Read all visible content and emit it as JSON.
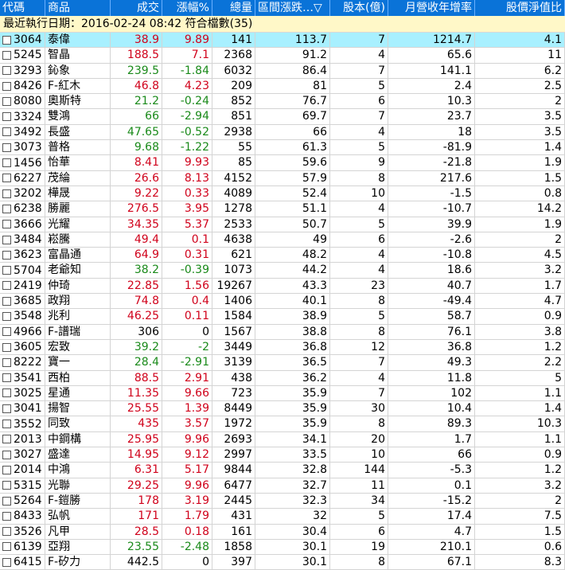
{
  "headers": [
    "代碼",
    "商品",
    "成交",
    "漲幅%",
    "總量",
    "區間漲跌…",
    "股本(億)",
    "月營收年增率",
    "股價淨值比"
  ],
  "sort_icon": "▽",
  "info_line": "最近執行日期：2016-02-24 08:42  符合檔數(35)",
  "rows": [
    {
      "code": "3064",
      "name": "泰偉",
      "price": "38.9",
      "chg": "9.89",
      "vol": "141",
      "range": "113.7",
      "cap": "7",
      "rev": "1214.7",
      "pb": "4.1",
      "dir": "up"
    },
    {
      "code": "5245",
      "name": "智晶",
      "price": "188.5",
      "chg": "7.1",
      "vol": "2368",
      "range": "91.2",
      "cap": "4",
      "rev": "65.6",
      "pb": "11",
      "dir": "up"
    },
    {
      "code": "3293",
      "name": "鈊象",
      "price": "239.5",
      "chg": "-1.84",
      "vol": "6032",
      "range": "86.4",
      "cap": "7",
      "rev": "141.1",
      "pb": "6.2",
      "dir": "down"
    },
    {
      "code": "8426",
      "name": "F-紅木",
      "price": "46.8",
      "chg": "4.23",
      "vol": "209",
      "range": "81",
      "cap": "5",
      "rev": "2.4",
      "pb": "2.5",
      "dir": "up"
    },
    {
      "code": "8080",
      "name": "奧斯特",
      "price": "21.2",
      "chg": "-0.24",
      "vol": "852",
      "range": "76.7",
      "cap": "6",
      "rev": "10.3",
      "pb": "2",
      "dir": "down"
    },
    {
      "code": "3324",
      "name": "雙鴻",
      "price": "66",
      "chg": "-2.94",
      "vol": "851",
      "range": "69.7",
      "cap": "7",
      "rev": "23.7",
      "pb": "3.5",
      "dir": "down"
    },
    {
      "code": "3492",
      "name": "長盛",
      "price": "47.65",
      "chg": "-0.52",
      "vol": "2938",
      "range": "66",
      "cap": "4",
      "rev": "18",
      "pb": "3.5",
      "dir": "down"
    },
    {
      "code": "3073",
      "name": "普格",
      "price": "9.68",
      "chg": "-1.22",
      "vol": "55",
      "range": "61.3",
      "cap": "5",
      "rev": "-81.9",
      "pb": "1.4",
      "dir": "down"
    },
    {
      "code": "1456",
      "name": "怡華",
      "price": "8.41",
      "chg": "9.93",
      "vol": "85",
      "range": "59.6",
      "cap": "9",
      "rev": "-21.8",
      "pb": "1.9",
      "dir": "up"
    },
    {
      "code": "6227",
      "name": "茂綸",
      "price": "26.6",
      "chg": "8.13",
      "vol": "4152",
      "range": "57.9",
      "cap": "8",
      "rev": "217.6",
      "pb": "1.5",
      "dir": "up"
    },
    {
      "code": "3202",
      "name": "樺晟",
      "price": "9.22",
      "chg": "0.33",
      "vol": "4089",
      "range": "52.4",
      "cap": "10",
      "rev": "-1.5",
      "pb": "0.8",
      "dir": "up"
    },
    {
      "code": "6238",
      "name": "勝麗",
      "price": "276.5",
      "chg": "3.95",
      "vol": "1278",
      "range": "51.1",
      "cap": "4",
      "rev": "-10.7",
      "pb": "14.2",
      "dir": "up"
    },
    {
      "code": "3666",
      "name": "光耀",
      "price": "34.35",
      "chg": "5.37",
      "vol": "2533",
      "range": "50.7",
      "cap": "5",
      "rev": "39.9",
      "pb": "1.9",
      "dir": "up"
    },
    {
      "code": "3484",
      "name": "崧騰",
      "price": "49.4",
      "chg": "0.1",
      "vol": "4638",
      "range": "49",
      "cap": "6",
      "rev": "-2.6",
      "pb": "2",
      "dir": "up"
    },
    {
      "code": "3623",
      "name": "富晶通",
      "price": "64.9",
      "chg": "0.31",
      "vol": "621",
      "range": "48.2",
      "cap": "4",
      "rev": "-10.8",
      "pb": "4.5",
      "dir": "up"
    },
    {
      "code": "5704",
      "name": "老爺知",
      "price": "38.2",
      "chg": "-0.39",
      "vol": "1073",
      "range": "44.2",
      "cap": "4",
      "rev": "18.6",
      "pb": "3.2",
      "dir": "down"
    },
    {
      "code": "2419",
      "name": "仲琦",
      "price": "22.85",
      "chg": "1.56",
      "vol": "19267",
      "range": "43.3",
      "cap": "23",
      "rev": "40.7",
      "pb": "1.7",
      "dir": "up"
    },
    {
      "code": "3685",
      "name": "政翔",
      "price": "74.8",
      "chg": "0.4",
      "vol": "1406",
      "range": "40.1",
      "cap": "8",
      "rev": "-49.4",
      "pb": "4.7",
      "dir": "up"
    },
    {
      "code": "3548",
      "name": "兆利",
      "price": "46.25",
      "chg": "0.11",
      "vol": "1584",
      "range": "38.9",
      "cap": "5",
      "rev": "58.7",
      "pb": "0.9",
      "dir": "up"
    },
    {
      "code": "4966",
      "name": "F-譜瑞",
      "price": "306",
      "chg": "0",
      "vol": "1567",
      "range": "38.8",
      "cap": "8",
      "rev": "76.1",
      "pb": "3.8",
      "dir": "flat"
    },
    {
      "code": "3605",
      "name": "宏致",
      "price": "39.2",
      "chg": "-2",
      "vol": "3449",
      "range": "36.8",
      "cap": "12",
      "rev": "36.8",
      "pb": "1.2",
      "dir": "down"
    },
    {
      "code": "8222",
      "name": "寶一",
      "price": "28.4",
      "chg": "-2.91",
      "vol": "3139",
      "range": "36.5",
      "cap": "7",
      "rev": "49.3",
      "pb": "2.2",
      "dir": "down"
    },
    {
      "code": "3541",
      "name": "西柏",
      "price": "88.5",
      "chg": "2.91",
      "vol": "438",
      "range": "36.2",
      "cap": "4",
      "rev": "11.8",
      "pb": "5",
      "dir": "up"
    },
    {
      "code": "3025",
      "name": "星通",
      "price": "11.35",
      "chg": "9.66",
      "vol": "723",
      "range": "35.9",
      "cap": "7",
      "rev": "102",
      "pb": "1.1",
      "dir": "up"
    },
    {
      "code": "3041",
      "name": "揚智",
      "price": "25.55",
      "chg": "1.39",
      "vol": "8449",
      "range": "35.9",
      "cap": "30",
      "rev": "10.4",
      "pb": "1.4",
      "dir": "up"
    },
    {
      "code": "3552",
      "name": "同致",
      "price": "435",
      "chg": "3.57",
      "vol": "1972",
      "range": "35.9",
      "cap": "8",
      "rev": "89.3",
      "pb": "10.3",
      "dir": "up"
    },
    {
      "code": "2013",
      "name": "中鋼構",
      "price": "25.95",
      "chg": "9.96",
      "vol": "2693",
      "range": "34.1",
      "cap": "20",
      "rev": "1.7",
      "pb": "1.1",
      "dir": "up"
    },
    {
      "code": "3027",
      "name": "盛達",
      "price": "14.95",
      "chg": "9.12",
      "vol": "2997",
      "range": "33.5",
      "cap": "10",
      "rev": "66",
      "pb": "0.9",
      "dir": "up"
    },
    {
      "code": "2014",
      "name": "中鴻",
      "price": "6.31",
      "chg": "5.17",
      "vol": "9844",
      "range": "32.8",
      "cap": "144",
      "rev": "-5.3",
      "pb": "1.2",
      "dir": "up"
    },
    {
      "code": "5315",
      "name": "光聯",
      "price": "29.25",
      "chg": "9.96",
      "vol": "6477",
      "range": "32.7",
      "cap": "11",
      "rev": "0.1",
      "pb": "3.2",
      "dir": "up"
    },
    {
      "code": "5264",
      "name": "F-鎧勝",
      "price": "178",
      "chg": "3.19",
      "vol": "2445",
      "range": "32.3",
      "cap": "34",
      "rev": "-15.2",
      "pb": "2",
      "dir": "up"
    },
    {
      "code": "8433",
      "name": "弘帆",
      "price": "171",
      "chg": "1.79",
      "vol": "431",
      "range": "32",
      "cap": "5",
      "rev": "17.4",
      "pb": "7.5",
      "dir": "up"
    },
    {
      "code": "3526",
      "name": "凡甲",
      "price": "28.5",
      "chg": "0.18",
      "vol": "161",
      "range": "30.4",
      "cap": "6",
      "rev": "4.7",
      "pb": "1.5",
      "dir": "up"
    },
    {
      "code": "6139",
      "name": "亞翔",
      "price": "23.55",
      "chg": "-2.48",
      "vol": "1858",
      "range": "30.1",
      "cap": "19",
      "rev": "210.1",
      "pb": "0.6",
      "dir": "down"
    },
    {
      "code": "6415",
      "name": "F-矽力",
      "price": "442.5",
      "chg": "0",
      "vol": "397",
      "range": "30.1",
      "cap": "8",
      "rev": "67.1",
      "pb": "8.3",
      "dir": "flat"
    }
  ],
  "colors": {
    "header_bg": "#0a73d8",
    "selected_row": "#a8f0ff",
    "up": "#d0021b",
    "down": "#1a8a1a",
    "info_bg": "#fff8c8"
  }
}
